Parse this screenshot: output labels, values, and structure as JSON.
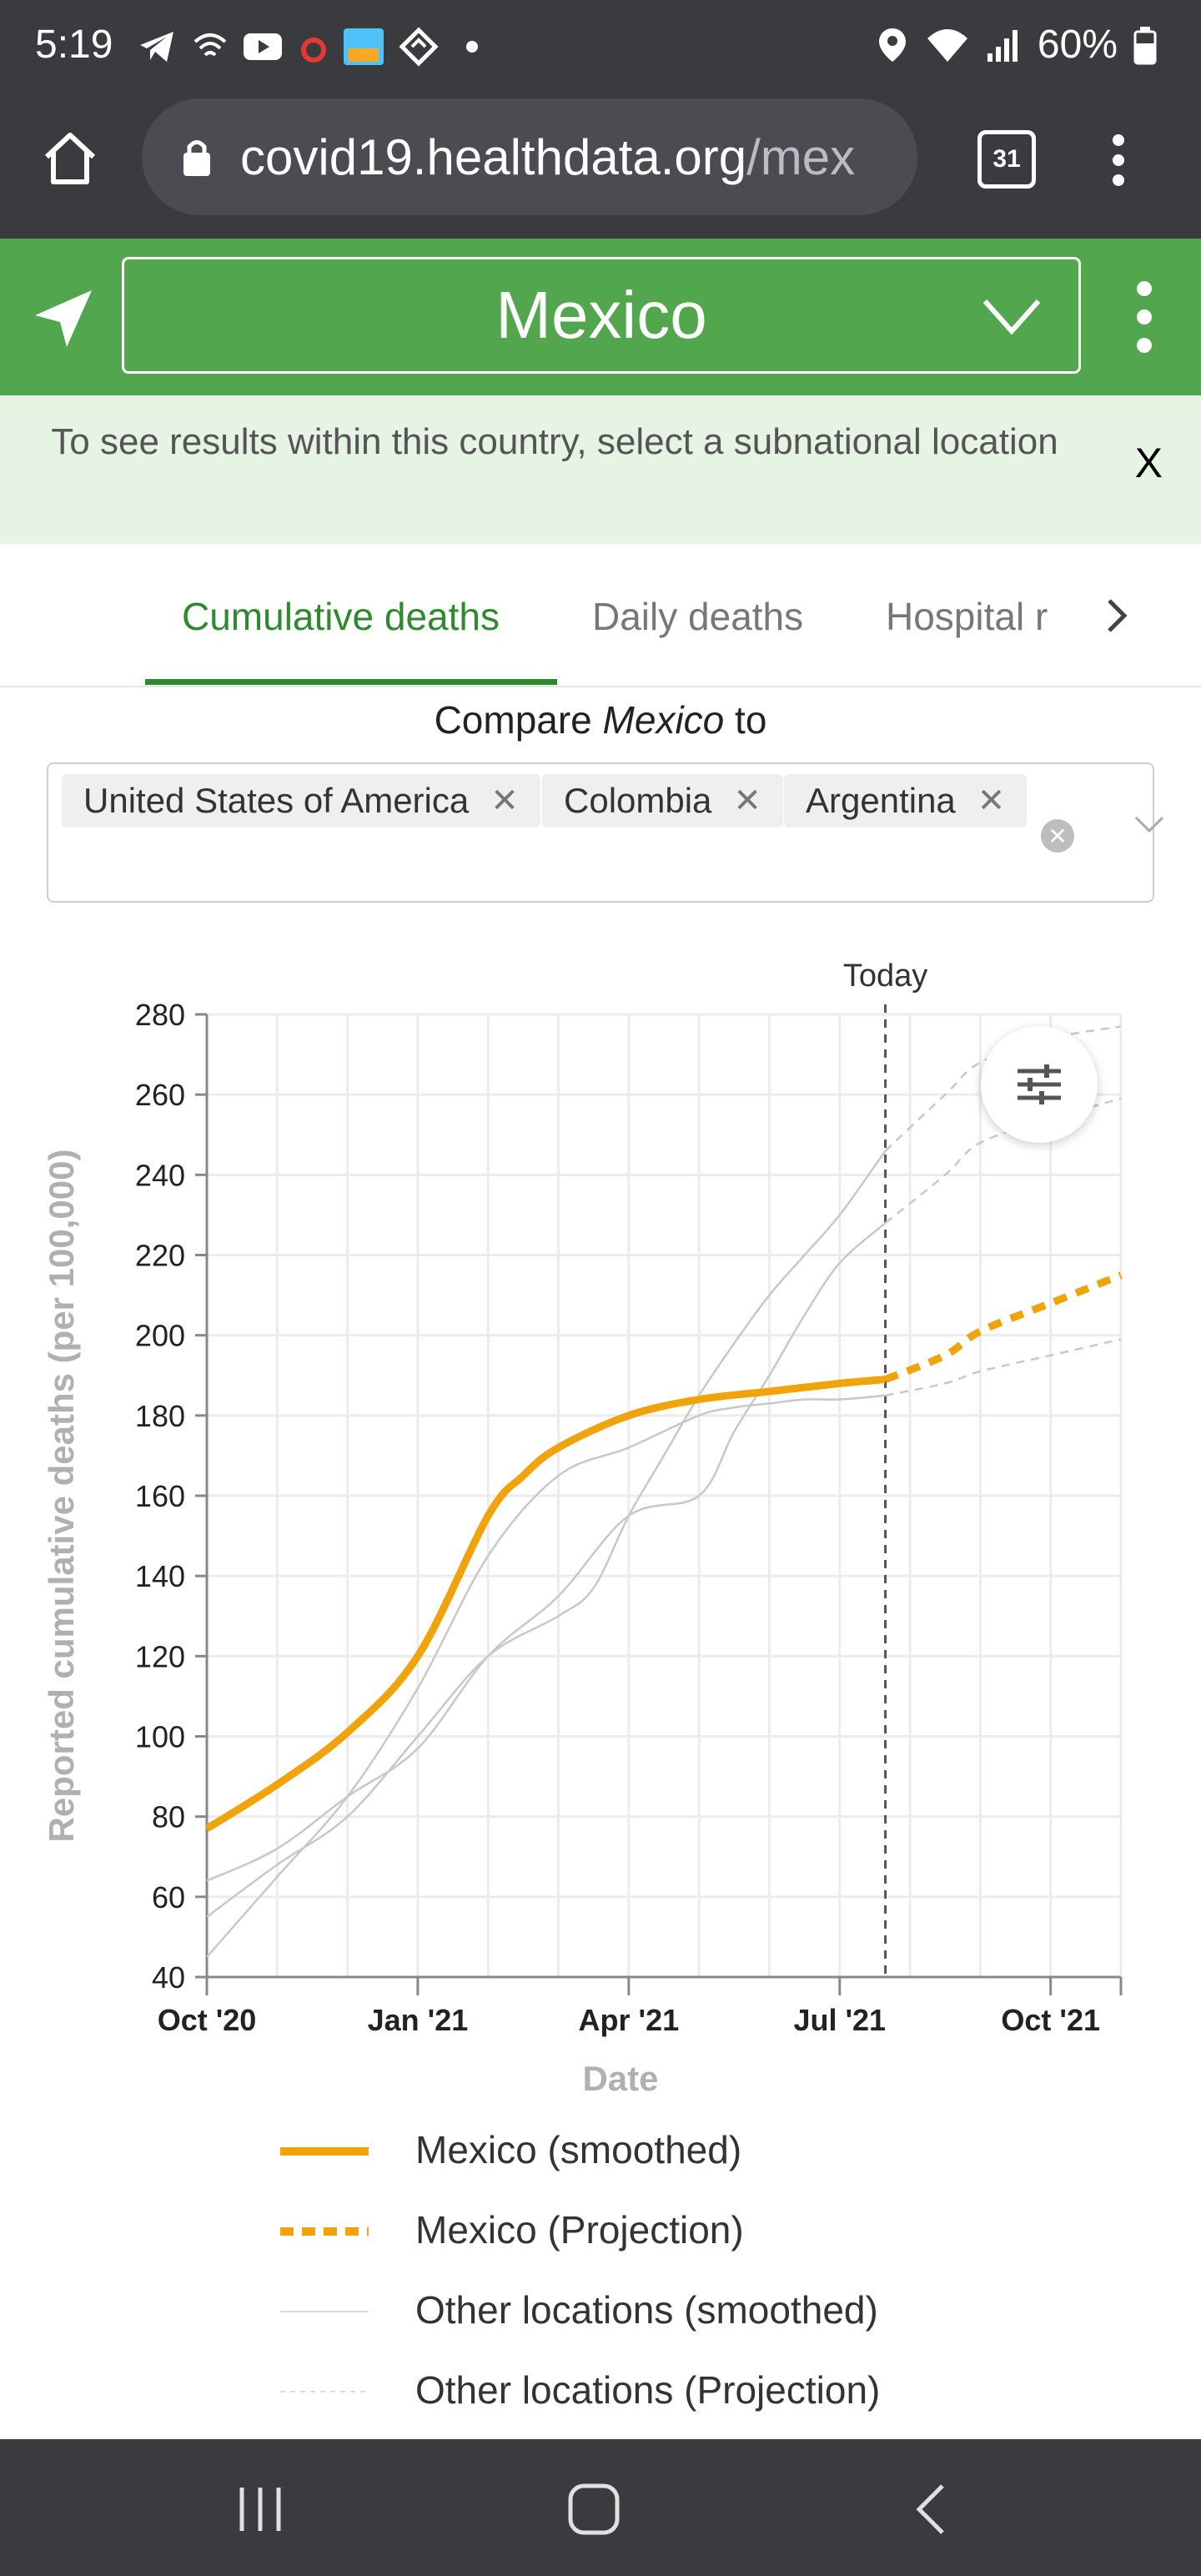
{
  "status_bar": {
    "time": "5:19",
    "battery": "60%"
  },
  "browser": {
    "url_host": "covid19.healthdata.org",
    "url_rest": "/mex",
    "tab_count": "31"
  },
  "location_selector": {
    "value": "Mexico"
  },
  "notice": {
    "text": "To see results within this country, select a subnational location",
    "close": "X"
  },
  "tabs": [
    {
      "label": "Cumulative deaths",
      "active": true
    },
    {
      "label": "Daily deaths",
      "active": false
    },
    {
      "label": "Hospital r",
      "active": false
    }
  ],
  "compare": {
    "prefix": "Compare ",
    "location": "Mexico",
    "suffix": " to"
  },
  "compare_chips": [
    "United States of America",
    "Colombia",
    "Argentina"
  ],
  "colors": {
    "green": "#52a64e",
    "dark_green": "#2f8a2f",
    "orange": "#f0a30a",
    "other_lines": "#bdbdbd"
  },
  "chart_data": {
    "type": "line",
    "ylabel": "Reported cumulative deaths (per 100,000)",
    "xlabel": "Date",
    "today_label": "Today",
    "xticks": [
      "Oct '20",
      "Jan '21",
      "Apr '21",
      "Jul '21",
      "Oct '21"
    ],
    "yticks": [
      40,
      60,
      80,
      100,
      120,
      140,
      160,
      180,
      200,
      220,
      240,
      260,
      280
    ],
    "ylim": [
      40,
      280
    ],
    "x_range_months": [
      0,
      13
    ],
    "today_month": 9.65,
    "grid": true,
    "series": [
      {
        "name": "Mexico (smoothed)",
        "style": "solid-orange",
        "x": [
          0,
          1,
          2,
          3,
          4,
          4.5,
          5,
          6,
          7,
          8,
          9,
          9.65
        ],
        "y": [
          77,
          88,
          101,
          120,
          155,
          165,
          172,
          180,
          184,
          186,
          188,
          189
        ]
      },
      {
        "name": "Mexico (Projection)",
        "style": "dashed-orange",
        "x": [
          9.65,
          10.5,
          11,
          12,
          13
        ],
        "y": [
          189,
          195,
          201,
          208,
          215
        ]
      },
      {
        "name": "Other locations (smoothed)",
        "style": "thin-grey",
        "x": [
          0,
          1,
          2,
          3,
          4,
          5,
          6,
          7,
          7.5,
          8,
          8.5,
          9,
          9.65
        ],
        "y": [
          64,
          72,
          85,
          97,
          120,
          135,
          155,
          160,
          176,
          190,
          205,
          218,
          228
        ]
      },
      {
        "name": "Other locations (smoothed)",
        "style": "thin-grey",
        "x": [
          0,
          1,
          2,
          3,
          4,
          5,
          6,
          7,
          7.5,
          8,
          8.5,
          9,
          9.65
        ],
        "y": [
          45,
          65,
          85,
          112,
          145,
          165,
          172,
          180,
          182,
          183,
          184,
          184,
          185
        ]
      },
      {
        "name": "Other locations (smoothed)",
        "style": "thin-grey",
        "x": [
          0,
          1,
          2,
          3,
          4,
          5,
          5.5,
          6,
          6.5,
          7,
          7.5,
          8,
          8.5,
          9,
          9.65
        ],
        "y": [
          55,
          68,
          80,
          100,
          120,
          130,
          137,
          155,
          170,
          185,
          198,
          210,
          220,
          230,
          246
        ]
      },
      {
        "name": "Other locations (Projection)",
        "style": "dashed-grey",
        "x": [
          9.65,
          10.5,
          11,
          12,
          13
        ],
        "y": [
          246,
          260,
          268,
          274,
          277
        ]
      },
      {
        "name": "Other locations (Projection)",
        "style": "dashed-grey",
        "x": [
          9.65,
          10.5,
          11,
          12,
          13
        ],
        "y": [
          228,
          240,
          248,
          254,
          259
        ]
      },
      {
        "name": "Other locations (Projection)",
        "style": "dashed-grey",
        "x": [
          9.65,
          10.5,
          11,
          12,
          13
        ],
        "y": [
          185,
          188,
          191,
          195,
          199
        ]
      }
    ]
  },
  "legend": [
    {
      "label": "Mexico (smoothed)",
      "style": "solid-orange"
    },
    {
      "label": "Mexico (Projection)",
      "style": "dashed-orange"
    },
    {
      "label": "Other locations (smoothed)",
      "style": "thin-grey"
    },
    {
      "label": "Other locations (Projection)",
      "style": "dashed-grey"
    }
  ]
}
